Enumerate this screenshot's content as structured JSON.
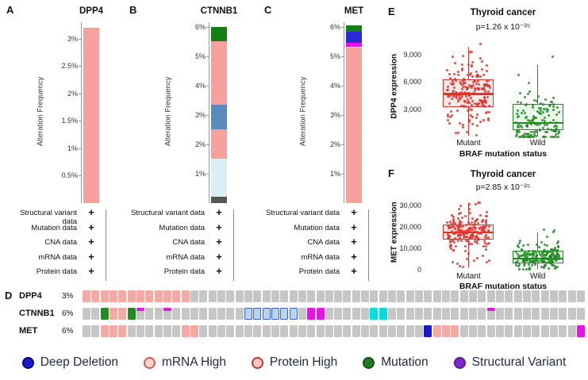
{
  "availability_rows": [
    "Structural variant data",
    "Mutation data",
    "CNA data",
    "mRNA data",
    "Protein data"
  ],
  "plus_symbol": "+",
  "chart_data": {
    "frequency_panels": [
      {
        "type": "bar",
        "panel_letter": "A",
        "title": "DPP4",
        "ylabel": "Alteration Frequency",
        "ymax": 3.3,
        "yticks": [
          {
            "value": 0.5,
            "label": "0.5%"
          },
          {
            "value": 1,
            "label": "1%"
          },
          {
            "value": 1.5,
            "label": "1.5%"
          },
          {
            "value": 2,
            "label": "2%"
          },
          {
            "value": 2.5,
            "label": "2.5%"
          },
          {
            "value": 3,
            "label": "3%"
          }
        ],
        "segments": [
          {
            "name": "mRNA High",
            "from": 0,
            "to": 3.2,
            "color": "#f7a19c"
          }
        ]
      },
      {
        "type": "bar",
        "panel_letter": "B",
        "title": "CTNNB1",
        "ylabel": "Alteration Frequency",
        "ymax": 6.15,
        "yticks": [
          {
            "value": 1,
            "label": "1%"
          },
          {
            "value": 2,
            "label": "2%"
          },
          {
            "value": 3,
            "label": "3%"
          },
          {
            "value": 4,
            "label": "4%"
          },
          {
            "value": 5,
            "label": "5%"
          },
          {
            "value": 6,
            "label": "6%"
          }
        ],
        "segments": [
          {
            "name": "Other",
            "from": 0,
            "to": 0.22,
            "color": "#555555"
          },
          {
            "name": "mRNA Low",
            "from": 0.22,
            "to": 1.5,
            "color": "#dbeef4"
          },
          {
            "name": "mRNA High",
            "from": 1.5,
            "to": 2.5,
            "color": "#f7a19c"
          },
          {
            "name": "Structural Variant",
            "from": 2.5,
            "to": 3.35,
            "color": "#5b8abd"
          },
          {
            "name": "mRNA High",
            "from": 3.35,
            "to": 5.5,
            "color": "#f7a19c"
          },
          {
            "name": "Mutation",
            "from": 5.5,
            "to": 6.0,
            "color": "#157f15"
          }
        ]
      },
      {
        "type": "bar",
        "panel_letter": "C",
        "title": "MET",
        "ylabel": "Alteration Frequency",
        "ymax": 6.15,
        "yticks": [
          {
            "value": 1,
            "label": "1%"
          },
          {
            "value": 2,
            "label": "2%"
          },
          {
            "value": 3,
            "label": "3%"
          },
          {
            "value": 4,
            "label": "4%"
          },
          {
            "value": 5,
            "label": "5%"
          },
          {
            "value": 6,
            "label": "6%"
          }
        ],
        "segments": [
          {
            "name": "mRNA High",
            "from": 0,
            "to": 5.3,
            "color": "#f7a19c"
          },
          {
            "name": "Protein High",
            "from": 5.3,
            "to": 5.45,
            "color": "#ea12ea"
          },
          {
            "name": "Deep Deletion",
            "from": 5.45,
            "to": 5.82,
            "color": "#2a2ad8"
          },
          {
            "name": "Mutation",
            "from": 5.82,
            "to": 6.05,
            "color": "#157f15"
          }
        ]
      }
    ],
    "box_panels": [
      {
        "type": "box",
        "panel_letter": "E",
        "title": "Thyroid cancer",
        "p_value": "p=1.26 x 10⁻²⁵",
        "ylabel": "DPP4 expression",
        "xlabel": "BRAF mutation status",
        "ymax": 10800,
        "yticks": [
          {
            "value": 3000,
            "label": "3,000"
          },
          {
            "value": 6000,
            "label": "6,000"
          },
          {
            "value": 9000,
            "label": "9,000"
          }
        ],
        "groups": [
          {
            "name": "Mutant",
            "color": "#e8302a",
            "fill": "#fdeae8",
            "n": 210,
            "min": 100,
            "q1": 3200,
            "median": 4700,
            "q3": 6300,
            "whisker_high": 9800,
            "points_max": 10600
          },
          {
            "name": "Wild",
            "color": "#1e8c1e",
            "fill": "#eaf6ea",
            "n": 150,
            "min": 0,
            "q1": 700,
            "median": 1500,
            "q3": 3600,
            "whisker_high": 7800,
            "points_max": 9300
          }
        ]
      },
      {
        "type": "box",
        "panel_letter": "F",
        "title": "Thyroid cancer",
        "p_value": "p=2.85 x 10⁻²⁵",
        "ylabel": "MET expression",
        "xlabel": "BRAF mutation status",
        "ymax": 34000,
        "yticks": [
          {
            "value": 0,
            "label": "0"
          },
          {
            "value": 10000,
            "label": "10,000"
          },
          {
            "value": 20000,
            "label": "20,000"
          },
          {
            "value": 30000,
            "label": "30,000"
          }
        ],
        "groups": [
          {
            "name": "Mutant",
            "color": "#e8302a",
            "fill": "#fdeae8",
            "n": 210,
            "min": 1200,
            "q1": 14000,
            "median": 17500,
            "q3": 21000,
            "whisker_high": 31500,
            "points_max": 33000
          },
          {
            "name": "Wild",
            "color": "#1e8c1e",
            "fill": "#eaf6ea",
            "n": 190,
            "min": 300,
            "q1": 3000,
            "median": 5200,
            "q3": 8800,
            "whisker_high": 17500,
            "points_max": 19500
          }
        ]
      }
    ]
  },
  "oncoprint": {
    "panel_letter": "D",
    "structural_border": "#3a62d8",
    "tile_colors": {
      "g": "#c6c6c6",
      "p": "#f7a8a3",
      "G": "#1e8c1e",
      "m": "#ea12ea",
      "c": "#00dede",
      "B": "#1717cf",
      "b": "#b8d4f0",
      "t": "#c6c6c6"
    },
    "rows": [
      {
        "gene": "DPP4",
        "pct": "3%",
        "tiles": "ppppppppppppgggggggggggggggggggggggggggggggggggggggggggg"
      },
      {
        "gene": "CTNNB1",
        "pct": "6%",
        "tiles": "ggGppGtggtggggggggbbbbbbgmmgggggccgggggggggggtgggggggggg"
      },
      {
        "gene": "MET",
        "pct": "6%",
        "tiles": "ggpppggggggppgggggggggggggggggggggggggBpppgggggggggggggm"
      }
    ]
  },
  "legend": {
    "text_color": "#232a45",
    "items": [
      {
        "label": "Deep Deletion",
        "fill": "#1a1acc",
        "border": "#00008b"
      },
      {
        "label": "mRNA High",
        "fill": "#fbd5d0",
        "border": "#e0524e"
      },
      {
        "label": "Protein High",
        "fill": "#f6c9c4",
        "border": "#c03a2e"
      },
      {
        "label": "Mutation",
        "fill": "#1e7d1e",
        "border": "#145214"
      },
      {
        "label": "Structural Variant",
        "fill": "#7d26cd",
        "border": "#5a1a9a"
      }
    ]
  }
}
